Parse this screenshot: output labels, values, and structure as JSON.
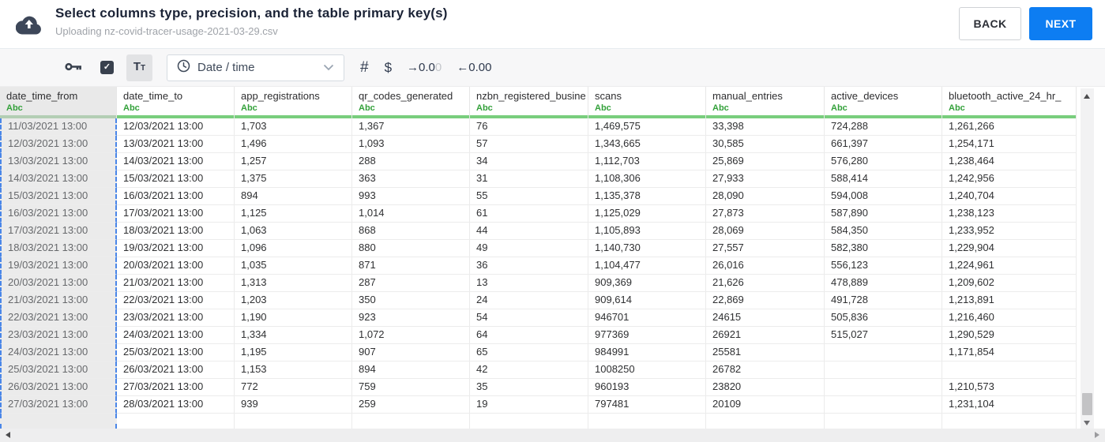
{
  "colors": {
    "accent_blue": "#0d7df2",
    "type_green": "#33a13a",
    "column_bar_green": "#79ce7d",
    "selected_column_dash_blue": "#4a86e8",
    "icon_navy": "#39414e"
  },
  "header": {
    "title": "Select columns type, precision, and the table primary key(s)",
    "subtitle": "Uploading nz-covid-tracer-usage-2021-03-29.csv",
    "back_label": "BACK",
    "next_label": "NEXT"
  },
  "toolbar": {
    "checkmark_glyph": "✓",
    "text_type": {
      "first": "T",
      "second": "T"
    },
    "type_dropdown_value": "Date / time",
    "hash_label": "#",
    "dollar_label": "$",
    "increase_decimal": {
      "label": "→0.0",
      "faded": "0"
    },
    "decrease_decimal_label": "←0.00"
  },
  "table": {
    "columns": [
      {
        "name": "date_time_from",
        "type": "Abc",
        "selected": true
      },
      {
        "name": "date_time_to",
        "type": "Abc",
        "selected": false
      },
      {
        "name": "app_registrations",
        "type": "Abc",
        "selected": false
      },
      {
        "name": "qr_codes_generated",
        "type": "Abc",
        "selected": false
      },
      {
        "name": "nzbn_registered_busine",
        "type": "Abc",
        "selected": false
      },
      {
        "name": "scans",
        "type": "Abc",
        "selected": false
      },
      {
        "name": "manual_entries",
        "type": "Abc",
        "selected": false
      },
      {
        "name": "active_devices",
        "type": "Abc",
        "selected": false
      },
      {
        "name": "bluetooth_active_24_hr_",
        "type": "Abc",
        "selected": false
      }
    ],
    "rows": [
      [
        "11/03/2021 13:00",
        "12/03/2021 13:00",
        "1,703",
        "1,367",
        "76",
        "1,469,575",
        "33,398",
        "724,288",
        "1,261,266"
      ],
      [
        "12/03/2021 13:00",
        "13/03/2021 13:00",
        "1,496",
        "1,093",
        "57",
        "1,343,665",
        "30,585",
        "661,397",
        "1,254,171"
      ],
      [
        "13/03/2021 13:00",
        "14/03/2021 13:00",
        "1,257",
        "288",
        "34",
        "1,112,703",
        "25,869",
        "576,280",
        "1,238,464"
      ],
      [
        "14/03/2021 13:00",
        "15/03/2021 13:00",
        "1,375",
        "363",
        "31",
        "1,108,306",
        "27,933",
        "588,414",
        "1,242,956"
      ],
      [
        "15/03/2021 13:00",
        "16/03/2021 13:00",
        "894",
        "993",
        "55",
        "1,135,378",
        "28,090",
        "594,008",
        "1,240,704"
      ],
      [
        "16/03/2021 13:00",
        "17/03/2021 13:00",
        "1,125",
        "1,014",
        "61",
        "1,125,029",
        "27,873",
        "587,890",
        "1,238,123"
      ],
      [
        "17/03/2021 13:00",
        "18/03/2021 13:00",
        "1,063",
        "868",
        "44",
        "1,105,893",
        "28,069",
        "584,350",
        "1,233,952"
      ],
      [
        "18/03/2021 13:00",
        "19/03/2021 13:00",
        "1,096",
        "880",
        "49",
        "1,140,730",
        "27,557",
        "582,380",
        "1,229,904"
      ],
      [
        "19/03/2021 13:00",
        "20/03/2021 13:00",
        "1,035",
        "871",
        "36",
        "1,104,477",
        "26,016",
        "556,123",
        "1,224,961"
      ],
      [
        "20/03/2021 13:00",
        "21/03/2021 13:00",
        "1,313",
        "287",
        "13",
        "909,369",
        "21,626",
        "478,889",
        "1,209,602"
      ],
      [
        "21/03/2021 13:00",
        "22/03/2021 13:00",
        "1,203",
        "350",
        "24",
        "909,614",
        "22,869",
        "491,728",
        "1,213,891"
      ],
      [
        "22/03/2021 13:00",
        "23/03/2021 13:00",
        "1,190",
        "923",
        "54",
        "946701",
        "24615",
        "505,836",
        "1,216,460"
      ],
      [
        "23/03/2021 13:00",
        "24/03/2021 13:00",
        "1,334",
        "1,072",
        "64",
        "977369",
        "26921",
        "515,027",
        "1,290,529"
      ],
      [
        "24/03/2021 13:00",
        "25/03/2021 13:00",
        "1,195",
        "907",
        "65",
        "984991",
        "25581",
        "",
        "1,171,854"
      ],
      [
        "25/03/2021 13:00",
        "26/03/2021 13:00",
        "1,153",
        "894",
        "42",
        "1008250",
        "26782",
        "",
        ""
      ],
      [
        "26/03/2021 13:00",
        "27/03/2021 13:00",
        "772",
        "759",
        "35",
        "960193",
        "23820",
        "",
        "1,210,573"
      ],
      [
        "27/03/2021 13:00",
        "28/03/2021 13:00",
        "939",
        "259",
        "19",
        "797481",
        "20109",
        "",
        "1,231,104"
      ]
    ]
  }
}
